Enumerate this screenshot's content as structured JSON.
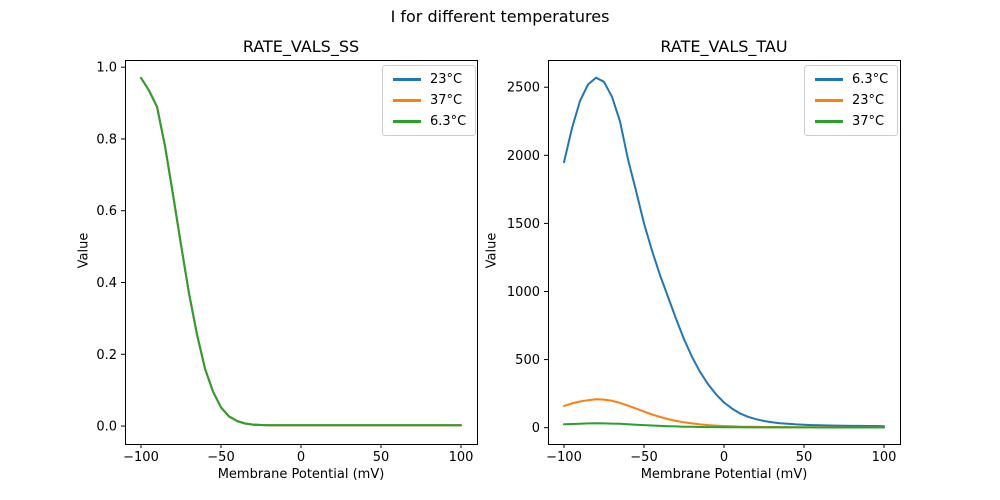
{
  "figure": {
    "suptitle": "I for different temperatures",
    "background_color": "#ffffff",
    "text_color": "#000000",
    "legend_border_color": "#cccccc"
  },
  "chart_data": [
    {
      "type": "line",
      "title": "RATE_VALS_SS",
      "xlabel": "Membrane Potential (mV)",
      "ylabel": "Value",
      "xlim": [
        -110,
        110
      ],
      "ylim": [
        -0.05,
        1.02
      ],
      "grid": false,
      "legend_position": "upper-right",
      "xtick_vals": [
        -100,
        -50,
        0,
        50,
        100
      ],
      "xtick_labels": [
        "−100",
        "−50",
        "0",
        "50",
        "100"
      ],
      "ytick_vals": [
        0,
        0.2,
        0.4,
        0.6,
        0.8,
        1.0
      ],
      "ytick_labels": [
        "0.0",
        "0.2",
        "0.4",
        "0.6",
        "0.8",
        "1.0"
      ],
      "x": [
        -100,
        -95,
        -90,
        -85,
        -80,
        -75,
        -70,
        -65,
        -60,
        -55,
        -50,
        -45,
        -40,
        -35,
        -30,
        -25,
        -20,
        -15,
        -10,
        -5,
        0,
        5,
        10,
        15,
        20,
        25,
        30,
        35,
        40,
        45,
        50,
        55,
        60,
        65,
        70,
        75,
        80,
        85,
        90,
        95,
        100
      ],
      "series": [
        {
          "name": "23°C",
          "color": "#1f77b4",
          "values": [
            0.97,
            0.935,
            0.89,
            0.78,
            0.645,
            0.505,
            0.37,
            0.255,
            0.16,
            0.096,
            0.052,
            0.027,
            0.014,
            0.007,
            0.004,
            0.003,
            0.002,
            0.002,
            0.002,
            0.002,
            0.002,
            0.002,
            0.002,
            0.002,
            0.002,
            0.002,
            0.002,
            0.002,
            0.002,
            0.002,
            0.002,
            0.002,
            0.002,
            0.002,
            0.002,
            0.002,
            0.002,
            0.002,
            0.002,
            0.002,
            0.002
          ]
        },
        {
          "name": "37°C",
          "color": "#ff7f0e",
          "values": [
            0.97,
            0.935,
            0.89,
            0.78,
            0.645,
            0.505,
            0.37,
            0.255,
            0.16,
            0.096,
            0.052,
            0.027,
            0.014,
            0.007,
            0.004,
            0.003,
            0.002,
            0.002,
            0.002,
            0.002,
            0.002,
            0.002,
            0.002,
            0.002,
            0.002,
            0.002,
            0.002,
            0.002,
            0.002,
            0.002,
            0.002,
            0.002,
            0.002,
            0.002,
            0.002,
            0.002,
            0.002,
            0.002,
            0.002,
            0.002,
            0.002
          ]
        },
        {
          "name": "6.3°C",
          "color": "#2ca02c",
          "values": [
            0.97,
            0.935,
            0.89,
            0.78,
            0.645,
            0.505,
            0.37,
            0.255,
            0.16,
            0.096,
            0.052,
            0.027,
            0.014,
            0.007,
            0.004,
            0.003,
            0.002,
            0.002,
            0.002,
            0.002,
            0.002,
            0.002,
            0.002,
            0.002,
            0.002,
            0.002,
            0.002,
            0.002,
            0.002,
            0.002,
            0.002,
            0.002,
            0.002,
            0.002,
            0.002,
            0.002,
            0.002,
            0.002,
            0.002,
            0.002,
            0.002
          ]
        }
      ]
    },
    {
      "type": "line",
      "title": "RATE_VALS_TAU",
      "xlabel": "Membrane Potential (mV)",
      "ylabel": "Value",
      "xlim": [
        -110,
        110
      ],
      "ylim": [
        -120,
        2700
      ],
      "grid": false,
      "legend_position": "upper-right",
      "xtick_vals": [
        -100,
        -50,
        0,
        50,
        100
      ],
      "xtick_labels": [
        "−100",
        "−50",
        "0",
        "50",
        "100"
      ],
      "ytick_vals": [
        0,
        500,
        1000,
        1500,
        2000,
        2500
      ],
      "ytick_labels": [
        "0",
        "500",
        "1000",
        "1500",
        "2000",
        "2500"
      ],
      "x": [
        -100,
        -95,
        -90,
        -85,
        -80,
        -75,
        -70,
        -65,
        -60,
        -55,
        -50,
        -45,
        -40,
        -35,
        -30,
        -25,
        -20,
        -15,
        -10,
        -5,
        0,
        5,
        10,
        15,
        20,
        25,
        30,
        35,
        40,
        45,
        50,
        55,
        60,
        65,
        70,
        75,
        80,
        85,
        90,
        95,
        100
      ],
      "series": [
        {
          "name": "6.3°C",
          "color": "#1f77b4",
          "values": [
            1950,
            2200,
            2400,
            2520,
            2570,
            2540,
            2430,
            2250,
            1970,
            1740,
            1500,
            1300,
            1120,
            960,
            800,
            650,
            520,
            410,
            320,
            245,
            185,
            140,
            105,
            80,
            62,
            49,
            40,
            33,
            28,
            24,
            21,
            19,
            17,
            16,
            15,
            14,
            13,
            13,
            12,
            12,
            11
          ]
        },
        {
          "name": "23°C",
          "color": "#ff7f0e",
          "values": [
            160,
            178,
            192,
            202,
            208,
            206,
            197,
            182,
            162,
            140,
            118,
            97,
            79,
            63,
            50,
            39,
            31,
            24,
            19,
            15,
            12,
            10,
            8,
            7,
            6,
            5,
            5,
            4,
            4,
            3,
            3,
            3,
            3,
            3,
            3,
            2,
            2,
            2,
            2,
            2,
            2
          ]
        },
        {
          "name": "37°C",
          "color": "#2ca02c",
          "values": [
            25,
            27,
            29,
            31,
            32,
            31,
            30,
            28,
            25,
            22,
            19,
            16,
            13,
            11,
            9,
            7,
            6,
            5,
            4,
            4,
            3,
            3,
            3,
            2,
            2,
            2,
            2,
            2,
            2,
            2,
            2,
            2,
            1,
            1,
            1,
            1,
            1,
            1,
            1,
            1,
            1
          ]
        }
      ]
    }
  ]
}
